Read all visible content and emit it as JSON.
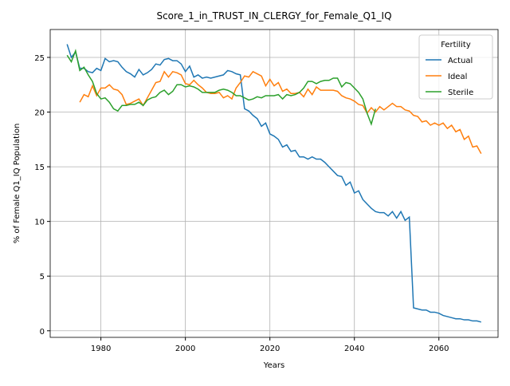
{
  "chart_data": {
    "type": "line",
    "title": "Score_1_in_TRUST_IN_CLERGY_for_Female_Q1_IQ",
    "x_label": "Years",
    "y_label": "% of Female Q1_IQ Population",
    "legend_title": "Fertility",
    "legend_position": "upper right",
    "grid": true,
    "xlim": [
      1968,
      2074
    ],
    "ylim": [
      -0.6,
      27.55
    ],
    "xticks": [
      1980,
      2000,
      2020,
      2040,
      2060
    ],
    "yticks": [
      0,
      5,
      10,
      15,
      20,
      25
    ],
    "x": [
      1972,
      1973,
      1974,
      1975,
      1976,
      1977,
      1978,
      1979,
      1980,
      1981,
      1982,
      1983,
      1984,
      1985,
      1986,
      1987,
      1988,
      1989,
      1990,
      1991,
      1992,
      1993,
      1994,
      1995,
      1996,
      1997,
      1998,
      1999,
      2000,
      2001,
      2002,
      2003,
      2004,
      2005,
      2006,
      2007,
      2008,
      2009,
      2010,
      2011,
      2012,
      2013,
      2014,
      2015,
      2016,
      2017,
      2018,
      2019,
      2020,
      2021,
      2022,
      2023,
      2024,
      2025,
      2026,
      2027,
      2028,
      2029,
      2030,
      2031,
      2032,
      2033,
      2034,
      2035,
      2036,
      2037,
      2038,
      2039,
      2040,
      2041,
      2042,
      2043,
      2044,
      2045,
      2046,
      2047,
      2048,
      2049,
      2050,
      2051,
      2052,
      2053,
      2054,
      2055,
      2056,
      2057,
      2058,
      2059,
      2060,
      2061,
      2062,
      2063,
      2064,
      2065,
      2066,
      2067,
      2068,
      2069,
      2070
    ],
    "series": [
      {
        "name": "Actual",
        "color": "#1f77b4",
        "values": [
          26.2,
          25.0,
          25.5,
          24.0,
          24.0,
          23.7,
          23.6,
          24.0,
          23.8,
          24.9,
          24.6,
          24.7,
          24.6,
          24.1,
          23.7,
          23.5,
          23.2,
          23.9,
          23.4,
          23.6,
          23.9,
          24.4,
          24.3,
          24.8,
          24.9,
          24.7,
          24.7,
          24.4,
          23.7,
          24.2,
          23.2,
          23.4,
          23.1,
          23.2,
          23.1,
          23.2,
          23.3,
          23.4,
          23.8,
          23.7,
          23.5,
          23.4,
          20.3,
          20.1,
          19.7,
          19.4,
          18.7,
          19.0,
          18.0,
          17.8,
          17.5,
          16.8,
          17.0,
          16.4,
          16.5,
          15.9,
          15.9,
          15.7,
          15.9,
          15.7,
          15.7,
          15.4,
          15.0,
          14.6,
          14.2,
          14.1,
          13.3,
          13.6,
          12.6,
          12.8,
          12.0,
          11.6,
          11.2,
          10.9,
          10.8,
          10.8,
          10.5,
          10.9,
          10.3,
          10.9,
          10.1,
          10.4,
          2.1,
          2.0,
          1.9,
          1.9,
          1.7,
          1.7,
          1.6,
          1.4,
          1.3,
          1.2,
          1.1,
          1.1,
          1.0,
          1.0,
          0.9,
          0.9,
          0.8
        ]
      },
      {
        "name": "Ideal",
        "color": "#ff7f0e",
        "values": [
          null,
          null,
          null,
          20.9,
          21.6,
          21.4,
          22.4,
          21.5,
          22.2,
          22.2,
          22.5,
          22.1,
          22.0,
          21.6,
          20.7,
          20.8,
          21.0,
          21.2,
          20.6,
          21.3,
          22.0,
          22.7,
          22.8,
          23.7,
          23.2,
          23.7,
          23.6,
          23.4,
          22.6,
          22.5,
          22.9,
          22.5,
          22.2,
          21.8,
          21.7,
          21.7,
          21.8,
          21.3,
          21.5,
          21.2,
          22.2,
          22.7,
          23.3,
          23.2,
          23.7,
          23.5,
          23.3,
          22.4,
          23.0,
          22.4,
          22.7,
          21.9,
          22.1,
          21.7,
          21.7,
          21.8,
          21.4,
          22.1,
          21.6,
          22.3,
          22.0,
          22.0,
          22.0,
          22.0,
          21.9,
          21.5,
          21.3,
          21.2,
          21.0,
          20.7,
          20.6,
          19.9,
          20.4,
          20.0,
          20.5,
          20.2,
          20.5,
          20.8,
          20.5,
          20.5,
          20.2,
          20.1,
          19.7,
          19.6,
          19.1,
          19.2,
          18.8,
          19.0,
          18.8,
          19.0,
          18.5,
          18.8,
          18.2,
          18.4,
          17.5,
          17.8,
          16.8,
          16.9,
          16.2
        ]
      },
      {
        "name": "Sterile",
        "color": "#2ca02c",
        "values": [
          25.2,
          24.6,
          25.6,
          23.8,
          24.1,
          23.4,
          22.8,
          21.7,
          21.2,
          21.3,
          20.9,
          20.3,
          20.1,
          20.6,
          20.6,
          20.7,
          20.7,
          20.9,
          20.6,
          21.1,
          21.3,
          21.4,
          21.8,
          22.0,
          21.6,
          21.9,
          22.5,
          22.5,
          22.3,
          22.4,
          22.3,
          22.1,
          21.8,
          21.8,
          21.8,
          21.8,
          22.0,
          22.1,
          22.0,
          21.8,
          21.5,
          21.5,
          21.3,
          21.1,
          21.2,
          21.4,
          21.3,
          21.5,
          21.5,
          21.5,
          21.6,
          21.2,
          21.6,
          21.5,
          21.6,
          21.8,
          22.2,
          22.8,
          22.8,
          22.6,
          22.8,
          22.9,
          22.9,
          23.1,
          23.1,
          22.3,
          22.7,
          22.6,
          22.2,
          21.8,
          21.2,
          19.9,
          18.9,
          20.3,
          null,
          null,
          null,
          null,
          null,
          null,
          null,
          null,
          null,
          null,
          null,
          null,
          null,
          null,
          null,
          null,
          null,
          null,
          null,
          null,
          null,
          null,
          null,
          null,
          null
        ]
      }
    ]
  }
}
